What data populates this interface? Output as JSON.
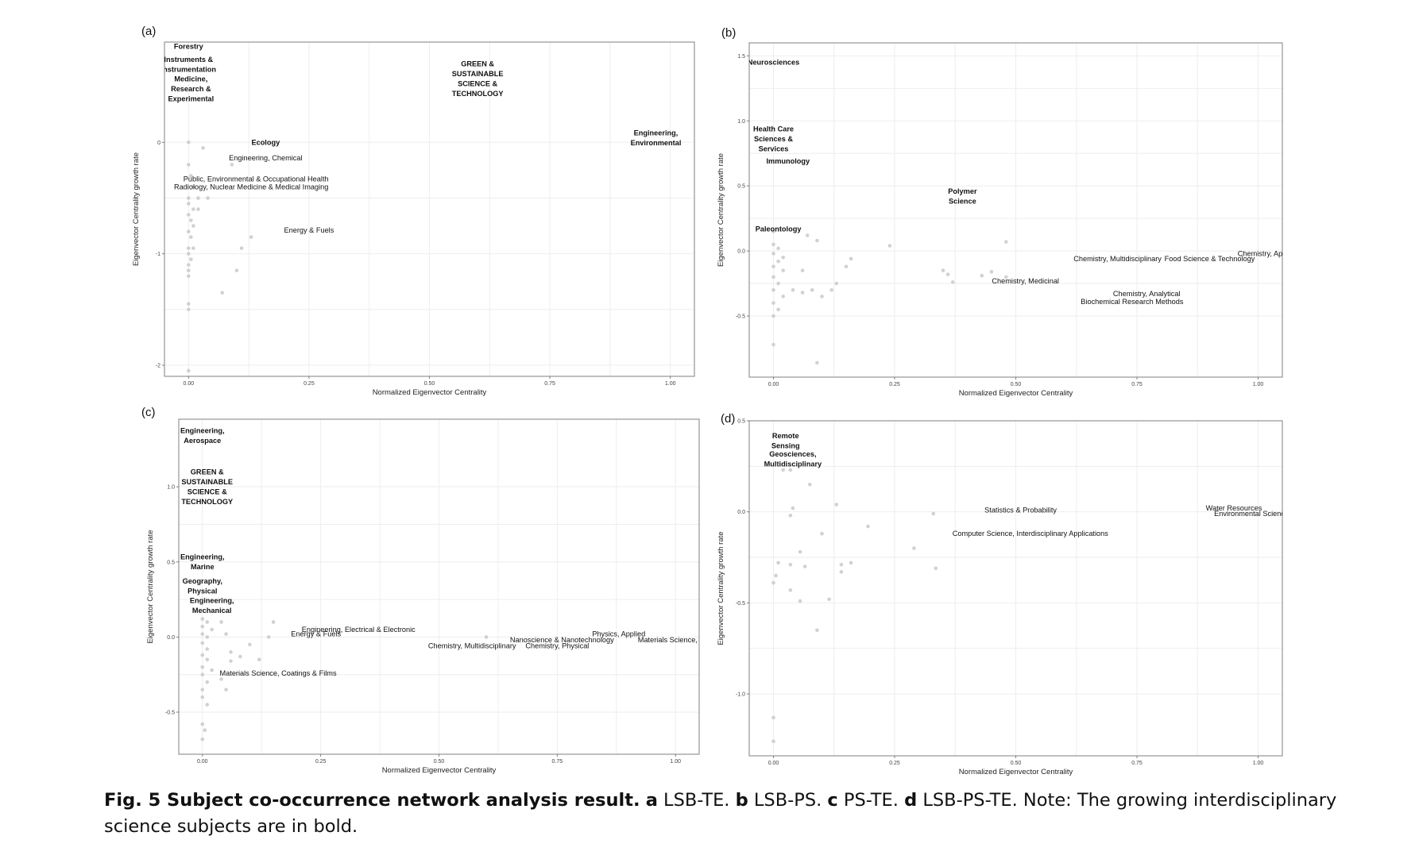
{
  "caption": {
    "fig_label": "Fig. 5 Subject co-occurrence network analysis result.",
    "a_letter": "a",
    "a_text": "LSB-TE.",
    "b_letter": "b",
    "b_text": "LSB-PS.",
    "c_letter": "c",
    "c_text": "PS-TE.",
    "d_letter": "d",
    "d_text": "LSB-PS-TE. Note: The growing interdisciplinary science subjects are in bold."
  },
  "colors": {
    "point": "#c9c9c9",
    "frame": "#7f7f7f",
    "grid": "#eeeeee"
  },
  "chart_data": [
    {
      "panel": "(a)",
      "type": "scatter",
      "xlabel": "Normalized Eigenvector Centrality",
      "ylabel": "Eigenvector Centrality growth rate",
      "xlim": [
        -0.05,
        1.05
      ],
      "ylim": [
        -2.1,
        0.9
      ],
      "xticks": [
        0,
        0.25,
        0.5,
        0.75,
        1
      ],
      "xtick_labels": [
        "0.00",
        "0.25",
        "0.50",
        "0.75",
        "1.00"
      ],
      "yticks": [
        -2,
        -1,
        0
      ],
      "ytick_labels": [
        "-2",
        "-1",
        "0"
      ],
      "points": [
        [
          0,
          0
        ],
        [
          0.03,
          -0.05
        ],
        [
          0,
          -0.2
        ],
        [
          0.005,
          -0.3
        ],
        [
          0.01,
          -0.4
        ],
        [
          0,
          -0.5
        ],
        [
          0.02,
          -0.5
        ],
        [
          0.04,
          -0.5
        ],
        [
          0,
          -0.55
        ],
        [
          0.01,
          -0.6
        ],
        [
          0.02,
          -0.6
        ],
        [
          0,
          -0.65
        ],
        [
          0.005,
          -0.7
        ],
        [
          0.01,
          -0.75
        ],
        [
          0,
          -0.8
        ],
        [
          0.005,
          -0.85
        ],
        [
          0,
          -0.95
        ],
        [
          0.01,
          -0.95
        ],
        [
          0,
          -1.0
        ],
        [
          0.005,
          -1.05
        ],
        [
          0,
          -1.1
        ],
        [
          0,
          -1.15
        ],
        [
          0,
          -1.2
        ],
        [
          0,
          -1.45
        ],
        [
          0,
          -1.5
        ],
        [
          0.07,
          -1.35
        ],
        [
          0.1,
          -1.15
        ],
        [
          0.11,
          -0.95
        ],
        [
          0.13,
          -0.85
        ],
        [
          0.09,
          -0.2
        ],
        [
          0,
          -2.05
        ]
      ],
      "labels": [
        {
          "text": "Forestry",
          "x": 0,
          "y": 0.86,
          "bold": true
        },
        {
          "text": "Instruments &\nInstrumentation",
          "x": 0,
          "y": 0.7,
          "bold": true
        },
        {
          "text": "Medicine,\nResearch &\nExperimental",
          "x": 0.005,
          "y": 0.48,
          "bold": true
        },
        {
          "text": "GREEN &\nSUSTAINABLE\nSCIENCE &\nTECHNOLOGY",
          "x": 0.6,
          "y": 0.57,
          "bold": true
        },
        {
          "text": "Ecology",
          "x": 0.16,
          "y": 0,
          "bold": true
        },
        {
          "text": "Engineering,\nEnvironmental",
          "x": 0.97,
          "y": 0.04,
          "bold": true
        },
        {
          "text": "Engineering, Chemical",
          "x": 0.16,
          "y": -0.14,
          "bold": false
        },
        {
          "text": "Public, Environmental & Occupational Health",
          "x": 0.14,
          "y": -0.33,
          "bold": false
        },
        {
          "text": "Radiology, Nuclear Medicine & Medical Imaging",
          "x": 0.13,
          "y": -0.4,
          "bold": false
        },
        {
          "text": "Energy & Fuels",
          "x": 0.25,
          "y": -0.79,
          "bold": false
        }
      ]
    },
    {
      "panel": "(b)",
      "type": "scatter",
      "xlabel": "Normalized Eigenvector Centrality",
      "ylabel": "Eigenvector Centrality growth rate",
      "xlim": [
        -0.05,
        1.05
      ],
      "ylim": [
        -0.97,
        1.6
      ],
      "xticks": [
        0,
        0.25,
        0.5,
        0.75,
        1
      ],
      "xtick_labels": [
        "0.00",
        "0.25",
        "0.50",
        "0.75",
        "1.00"
      ],
      "yticks": [
        -0.5,
        0,
        0.5,
        1,
        1.5
      ],
      "ytick_labels": [
        "-0.5",
        "0.0",
        "0.5",
        "1.0",
        "1.5"
      ],
      "points": [
        [
          0,
          0.15
        ],
        [
          0,
          0.05
        ],
        [
          0.01,
          0.02
        ],
        [
          0,
          -0.02
        ],
        [
          0.02,
          -0.05
        ],
        [
          0.01,
          -0.08
        ],
        [
          0,
          -0.12
        ],
        [
          0.02,
          -0.15
        ],
        [
          0,
          -0.2
        ],
        [
          0.01,
          -0.25
        ],
        [
          0,
          -0.3
        ],
        [
          0.02,
          -0.35
        ],
        [
          0,
          -0.4
        ],
        [
          0.01,
          -0.45
        ],
        [
          0,
          -0.5
        ],
        [
          0,
          -0.72
        ],
        [
          0.04,
          -0.3
        ],
        [
          0.06,
          -0.32
        ],
        [
          0.08,
          -0.3
        ],
        [
          0.06,
          -0.15
        ],
        [
          0.07,
          0.12
        ],
        [
          0.09,
          0.08
        ],
        [
          0.1,
          -0.35
        ],
        [
          0.12,
          -0.3
        ],
        [
          0.13,
          -0.25
        ],
        [
          0.15,
          -0.12
        ],
        [
          0.16,
          -0.06
        ],
        [
          0.09,
          -0.86
        ],
        [
          0.24,
          0.04
        ],
        [
          0.35,
          -0.15
        ],
        [
          0.36,
          -0.18
        ],
        [
          0.37,
          -0.24
        ],
        [
          0.43,
          -0.19
        ],
        [
          0.45,
          -0.16
        ],
        [
          0.48,
          -0.2
        ],
        [
          0.48,
          0.07
        ]
      ],
      "labels": [
        {
          "text": "Neurosciences",
          "x": 0,
          "y": 1.45,
          "bold": true
        },
        {
          "text": "Health Care\nSciences &\nServices",
          "x": 0,
          "y": 0.86,
          "bold": true
        },
        {
          "text": "Immunology",
          "x": 0.03,
          "y": 0.69,
          "bold": true
        },
        {
          "text": "Polymer\nScience",
          "x": 0.39,
          "y": 0.42,
          "bold": true
        },
        {
          "text": "Paleontology",
          "x": 0.01,
          "y": 0.17,
          "bold": true
        },
        {
          "text": "Chemistry, Multidisciplinary",
          "x": 0.71,
          "y": -0.06,
          "bold": false
        },
        {
          "text": "Food Science & Technology",
          "x": 0.9,
          "y": -0.06,
          "bold": false
        },
        {
          "text": "Chemistry, Applied",
          "x": 1.02,
          "y": -0.02,
          "bold": false
        },
        {
          "text": "Chemistry, Medicinal",
          "x": 0.52,
          "y": -0.23,
          "bold": false
        },
        {
          "text": "Chemistry, Analytical",
          "x": 0.77,
          "y": -0.33,
          "bold": false
        },
        {
          "text": "Biochemical Research Methods",
          "x": 0.74,
          "y": -0.39,
          "bold": false
        }
      ]
    },
    {
      "panel": "(c)",
      "type": "scatter",
      "xlabel": "Normalized Eigenvector Centrality",
      "ylabel": "Eigenvector Centrality growth rate",
      "xlim": [
        -0.05,
        1.05
      ],
      "ylim": [
        -0.78,
        1.45
      ],
      "xticks": [
        0,
        0.25,
        0.5,
        0.75,
        1
      ],
      "xtick_labels": [
        "0.00",
        "0.25",
        "0.50",
        "0.75",
        "1.00"
      ],
      "yticks": [
        -0.5,
        0,
        0.5,
        1
      ],
      "ytick_labels": [
        "-0.5",
        "0.0",
        "0.5",
        "1.0"
      ],
      "points": [
        [
          0,
          0.12
        ],
        [
          0.01,
          0.1
        ],
        [
          0,
          0.07
        ],
        [
          0.02,
          0.05
        ],
        [
          0,
          0.02
        ],
        [
          0.01,
          0
        ],
        [
          0,
          -0.04
        ],
        [
          0.01,
          -0.08
        ],
        [
          0,
          -0.12
        ],
        [
          0.01,
          -0.15
        ],
        [
          0,
          -0.2
        ],
        [
          0.02,
          -0.22
        ],
        [
          0,
          -0.25
        ],
        [
          0.01,
          -0.3
        ],
        [
          0,
          -0.35
        ],
        [
          0,
          -0.4
        ],
        [
          0.01,
          -0.45
        ],
        [
          0,
          -0.58
        ],
        [
          0.005,
          -0.62
        ],
        [
          0,
          -0.68
        ],
        [
          0.04,
          0.1
        ],
        [
          0.05,
          0.02
        ],
        [
          0.06,
          -0.1
        ],
        [
          0.06,
          -0.16
        ],
        [
          0.08,
          -0.13
        ],
        [
          0.1,
          -0.05
        ],
        [
          0.12,
          -0.15
        ],
        [
          0.14,
          0
        ],
        [
          0.15,
          0.1
        ],
        [
          0.05,
          -0.35
        ],
        [
          0.04,
          -0.28
        ],
        [
          0.6,
          0
        ]
      ],
      "labels": [
        {
          "text": "Engineering,\nAerospace",
          "x": 0,
          "y": 1.34,
          "bold": true
        },
        {
          "text": "GREEN &\nSUSTAINABLE\nSCIENCE &\nTECHNOLOGY",
          "x": 0.01,
          "y": 1.0,
          "bold": true
        },
        {
          "text": "Engineering,\nMarine",
          "x": 0,
          "y": 0.5,
          "bold": true
        },
        {
          "text": "Geography,\nPhysical",
          "x": 0,
          "y": 0.34,
          "bold": true
        },
        {
          "text": "Engineering,\nMechanical",
          "x": 0.02,
          "y": 0.21,
          "bold": true
        },
        {
          "text": "Engineering, Electrical & Electronic",
          "x": 0.33,
          "y": 0.05,
          "bold": false
        },
        {
          "text": "Energy & Fuels",
          "x": 0.24,
          "y": 0.02,
          "bold": false
        },
        {
          "text": "Chemistry, Multidisciplinary",
          "x": 0.57,
          "y": -0.06,
          "bold": false
        },
        {
          "text": "Nanoscience & Nanotechnology",
          "x": 0.76,
          "y": -0.02,
          "bold": false
        },
        {
          "text": "Chemistry, Physical",
          "x": 0.75,
          "y": -0.06,
          "bold": false
        },
        {
          "text": "Physics, Applied",
          "x": 0.88,
          "y": 0.02,
          "bold": false
        },
        {
          "text": "Materials Science, Multidisciplinary",
          "x": 1.04,
          "y": -0.02,
          "bold": false
        },
        {
          "text": "Materials Science, Coatings & Films",
          "x": 0.16,
          "y": -0.24,
          "bold": false
        }
      ]
    },
    {
      "panel": "(d)",
      "type": "scatter",
      "xlabel": "Normalized Eigenvector Centrality",
      "ylabel": "Eigenvector Centrality growth rate",
      "xlim": [
        -0.05,
        1.05
      ],
      "ylim": [
        -1.34,
        0.5
      ],
      "xticks": [
        0,
        0.25,
        0.5,
        0.75,
        1
      ],
      "xtick_labels": [
        "0.00",
        "0.25",
        "0.50",
        "0.75",
        "1.00"
      ],
      "yticks": [
        -1,
        -0.5,
        0,
        0.5
      ],
      "ytick_labels": [
        "-1.0",
        "-0.5",
        "0.0",
        "0.5"
      ],
      "points": [
        [
          0.02,
          0.23
        ],
        [
          0.035,
          0.23
        ],
        [
          0.075,
          0.15
        ],
        [
          0.04,
          0.02
        ],
        [
          0.035,
          -0.02
        ],
        [
          0.13,
          0.04
        ],
        [
          0.1,
          -0.12
        ],
        [
          0.195,
          -0.08
        ],
        [
          0.01,
          -0.28
        ],
        [
          0.035,
          -0.29
        ],
        [
          0.005,
          -0.35
        ],
        [
          0,
          -0.39
        ],
        [
          0.055,
          -0.22
        ],
        [
          0.065,
          -0.3
        ],
        [
          0.14,
          -0.29
        ],
        [
          0.16,
          -0.28
        ],
        [
          0.14,
          -0.33
        ],
        [
          0.115,
          -0.48
        ],
        [
          0.035,
          -0.43
        ],
        [
          0.055,
          -0.49
        ],
        [
          0.09,
          -0.65
        ],
        [
          0.29,
          -0.2
        ],
        [
          0.33,
          -0.01
        ],
        [
          0.335,
          -0.31
        ],
        [
          0,
          -1.13
        ],
        [
          0,
          -1.26
        ]
      ],
      "labels": [
        {
          "text": "Remote\nSensing",
          "x": 0.025,
          "y": 0.39,
          "bold": true
        },
        {
          "text": "Geosciences,\nMultidisciplinary",
          "x": 0.04,
          "y": 0.29,
          "bold": true
        },
        {
          "text": "Statistics & Probability",
          "x": 0.51,
          "y": 0.01,
          "bold": false
        },
        {
          "text": "Computer Science, Interdisciplinary Applications",
          "x": 0.53,
          "y": -0.12,
          "bold": false
        },
        {
          "text": "Water Resources",
          "x": 0.95,
          "y": 0.02,
          "bold": false
        },
        {
          "text": "Environmental Sciences",
          "x": 0.99,
          "y": -0.01,
          "bold": false
        }
      ]
    }
  ]
}
